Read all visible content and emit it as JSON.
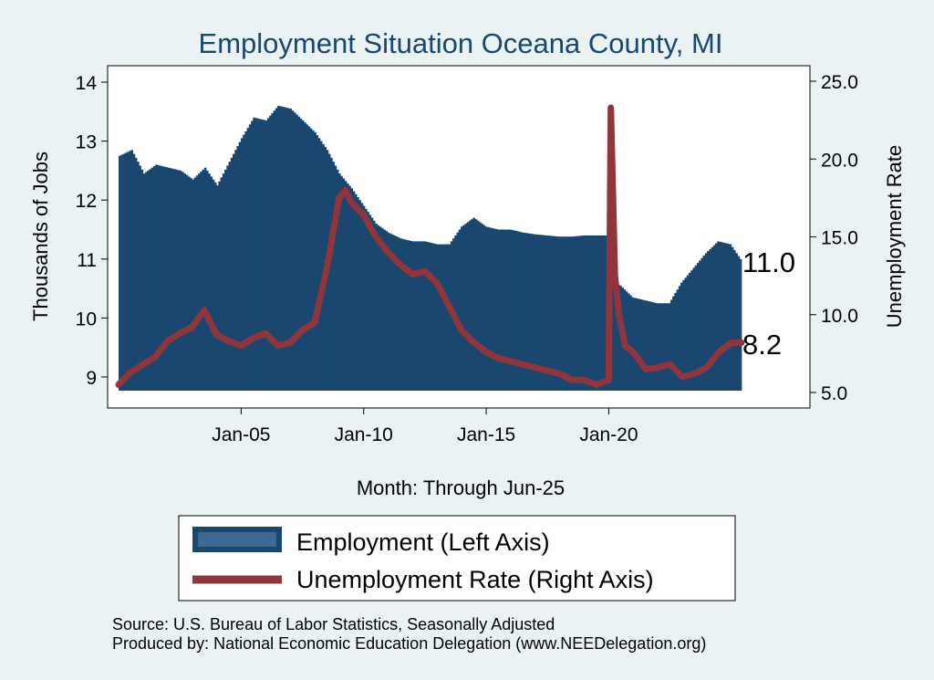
{
  "chart_data": {
    "type": "bar+line",
    "title": "Employment Situation Oceana  County, MI",
    "xlabel": "Month: Through Jun-25",
    "ylabel_left": "Thousands of Jobs",
    "ylabel_right": "Unemployment Rate",
    "x_ticks": [
      "Jan-05",
      "Jan-10",
      "Jan-15",
      "Jan-20"
    ],
    "y_left_ticks": [
      "9",
      "10",
      "11",
      "12",
      "13",
      "14"
    ],
    "y_right_ticks": [
      "5.0",
      "10.0",
      "15.0",
      "20.0",
      "25.0"
    ],
    "ylim_left": [
      8.78,
      14.25
    ],
    "ylim_right": [
      5.0,
      25.6
    ],
    "end_labels": {
      "employment": "11.0",
      "unemployment": "8.2"
    },
    "legend_position": "bottom",
    "grid": false,
    "series": [
      {
        "name": "Employment (Left Axis)",
        "type": "bar",
        "color": "#1a476f",
        "axis": "left",
        "x": [
          "2000-01",
          "2000-07",
          "2001-01",
          "2001-07",
          "2002-01",
          "2002-07",
          "2003-01",
          "2003-07",
          "2004-01",
          "2004-07",
          "2005-01",
          "2005-07",
          "2006-01",
          "2006-07",
          "2007-01",
          "2007-07",
          "2008-01",
          "2008-07",
          "2009-01",
          "2009-07",
          "2010-01",
          "2010-07",
          "2011-01",
          "2011-07",
          "2012-01",
          "2012-07",
          "2013-01",
          "2013-07",
          "2014-01",
          "2014-07",
          "2015-01",
          "2015-07",
          "2016-01",
          "2016-07",
          "2017-01",
          "2017-07",
          "2018-01",
          "2018-07",
          "2019-01",
          "2019-07",
          "2020-01",
          "2020-04",
          "2020-07",
          "2021-01",
          "2021-07",
          "2022-01",
          "2022-07",
          "2023-01",
          "2023-07",
          "2024-01",
          "2024-07",
          "2025-01",
          "2025-06"
        ],
        "values": [
          12.75,
          12.85,
          12.45,
          12.6,
          12.55,
          12.5,
          12.35,
          12.55,
          12.25,
          12.65,
          13.05,
          13.4,
          13.35,
          13.6,
          13.55,
          13.35,
          13.15,
          12.85,
          12.45,
          12.2,
          11.9,
          11.6,
          11.45,
          11.35,
          11.3,
          11.3,
          11.25,
          11.25,
          11.55,
          11.7,
          11.55,
          11.5,
          11.5,
          11.45,
          11.42,
          11.4,
          11.38,
          11.38,
          11.4,
          11.4,
          11.4,
          10.6,
          10.55,
          10.35,
          10.3,
          10.25,
          10.25,
          10.6,
          10.85,
          11.1,
          11.3,
          11.25,
          11.0
        ]
      },
      {
        "name": "Unemployment Rate (Right Axis)",
        "type": "line",
        "color": "#90353b",
        "axis": "right",
        "x": [
          "2000-01",
          "2000-07",
          "2001-01",
          "2001-07",
          "2002-01",
          "2002-07",
          "2003-01",
          "2003-07",
          "2004-01",
          "2004-07",
          "2005-01",
          "2005-07",
          "2006-01",
          "2006-07",
          "2007-01",
          "2007-07",
          "2008-01",
          "2008-07",
          "2009-01",
          "2009-04",
          "2009-07",
          "2010-01",
          "2010-07",
          "2011-01",
          "2011-07",
          "2012-01",
          "2012-07",
          "2013-01",
          "2013-07",
          "2014-01",
          "2014-07",
          "2015-01",
          "2015-07",
          "2016-01",
          "2016-07",
          "2017-01",
          "2017-07",
          "2018-01",
          "2018-07",
          "2019-01",
          "2019-07",
          "2020-01",
          "2020-02",
          "2020-04",
          "2020-06",
          "2020-09",
          "2021-01",
          "2021-07",
          "2022-01",
          "2022-07",
          "2023-01",
          "2023-07",
          "2024-01",
          "2024-07",
          "2025-01",
          "2025-06"
        ],
        "values": [
          5.5,
          6.3,
          6.8,
          7.3,
          8.3,
          8.8,
          9.2,
          10.3,
          8.7,
          8.3,
          8.0,
          8.5,
          8.8,
          8.0,
          8.2,
          9.0,
          9.5,
          13.0,
          17.5,
          18.0,
          17.2,
          16.4,
          15.0,
          14.0,
          13.2,
          12.6,
          12.8,
          12.0,
          10.5,
          9.0,
          8.2,
          7.6,
          7.2,
          7.0,
          6.8,
          6.6,
          6.4,
          6.2,
          5.8,
          5.8,
          5.5,
          5.8,
          23.3,
          12.5,
          10.0,
          8.0,
          7.6,
          6.5,
          6.6,
          6.8,
          6.0,
          6.2,
          6.6,
          7.6,
          8.2,
          8.2
        ]
      }
    ]
  },
  "footer": {
    "source": "Source: U.S. Bureau of Labor Statistics, Seasonally Adjusted",
    "produced_by": "Produced by: National Economic Education Delegation (www.NEEDelegation.org)"
  }
}
